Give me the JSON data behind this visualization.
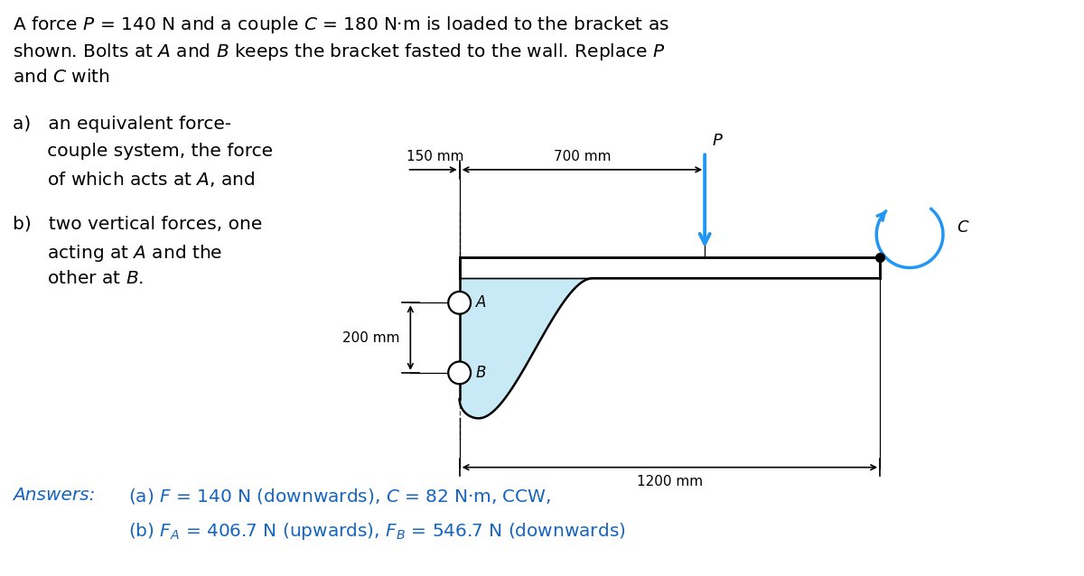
{
  "title_line1": "A force $P$ = 140 N and a couple $C$ = 180 N·m is loaded to the bracket as",
  "title_line2": "shown. Bolts at $A$ and $B$ keeps the bracket fasted to the wall. Replace $P$",
  "title_line3": "and $C$ with",
  "item_a_line1": "a)   an equivalent force-",
  "item_a_line2": "      couple system, the force",
  "item_a_line3": "      of which acts at $A$, and",
  "item_b_line1": "b)   two vertical forces, one",
  "item_b_line2": "      acting at $A$ and the",
  "item_b_line3": "      other at $B$.",
  "answers_label": "Answers:",
  "answer_a": "(a) $F$ = 140 N (downwards), $C$ = 82 N·m, CCW,",
  "answer_b": "(b) $F_A$ = 406.7 N (upwards), $F_B$ = 546.7 N (downwards)",
  "dim_150": "150 mm",
  "dim_700": "700 mm",
  "dim_200": "200 mm",
  "dim_1200": "1200 mm",
  "label_P": "$P$",
  "label_C": "$C$",
  "label_A": "A",
  "label_B": "B",
  "bracket_fill": "#c8eaf7",
  "bracket_edge": "#000000",
  "arrow_color": "#2196f3",
  "text_color": "#000000",
  "answer_color": "#1565c0",
  "background": "#ffffff",
  "fontsize_main": 14.5,
  "fontsize_dim": 11.0,
  "fontsize_label": 12.0
}
